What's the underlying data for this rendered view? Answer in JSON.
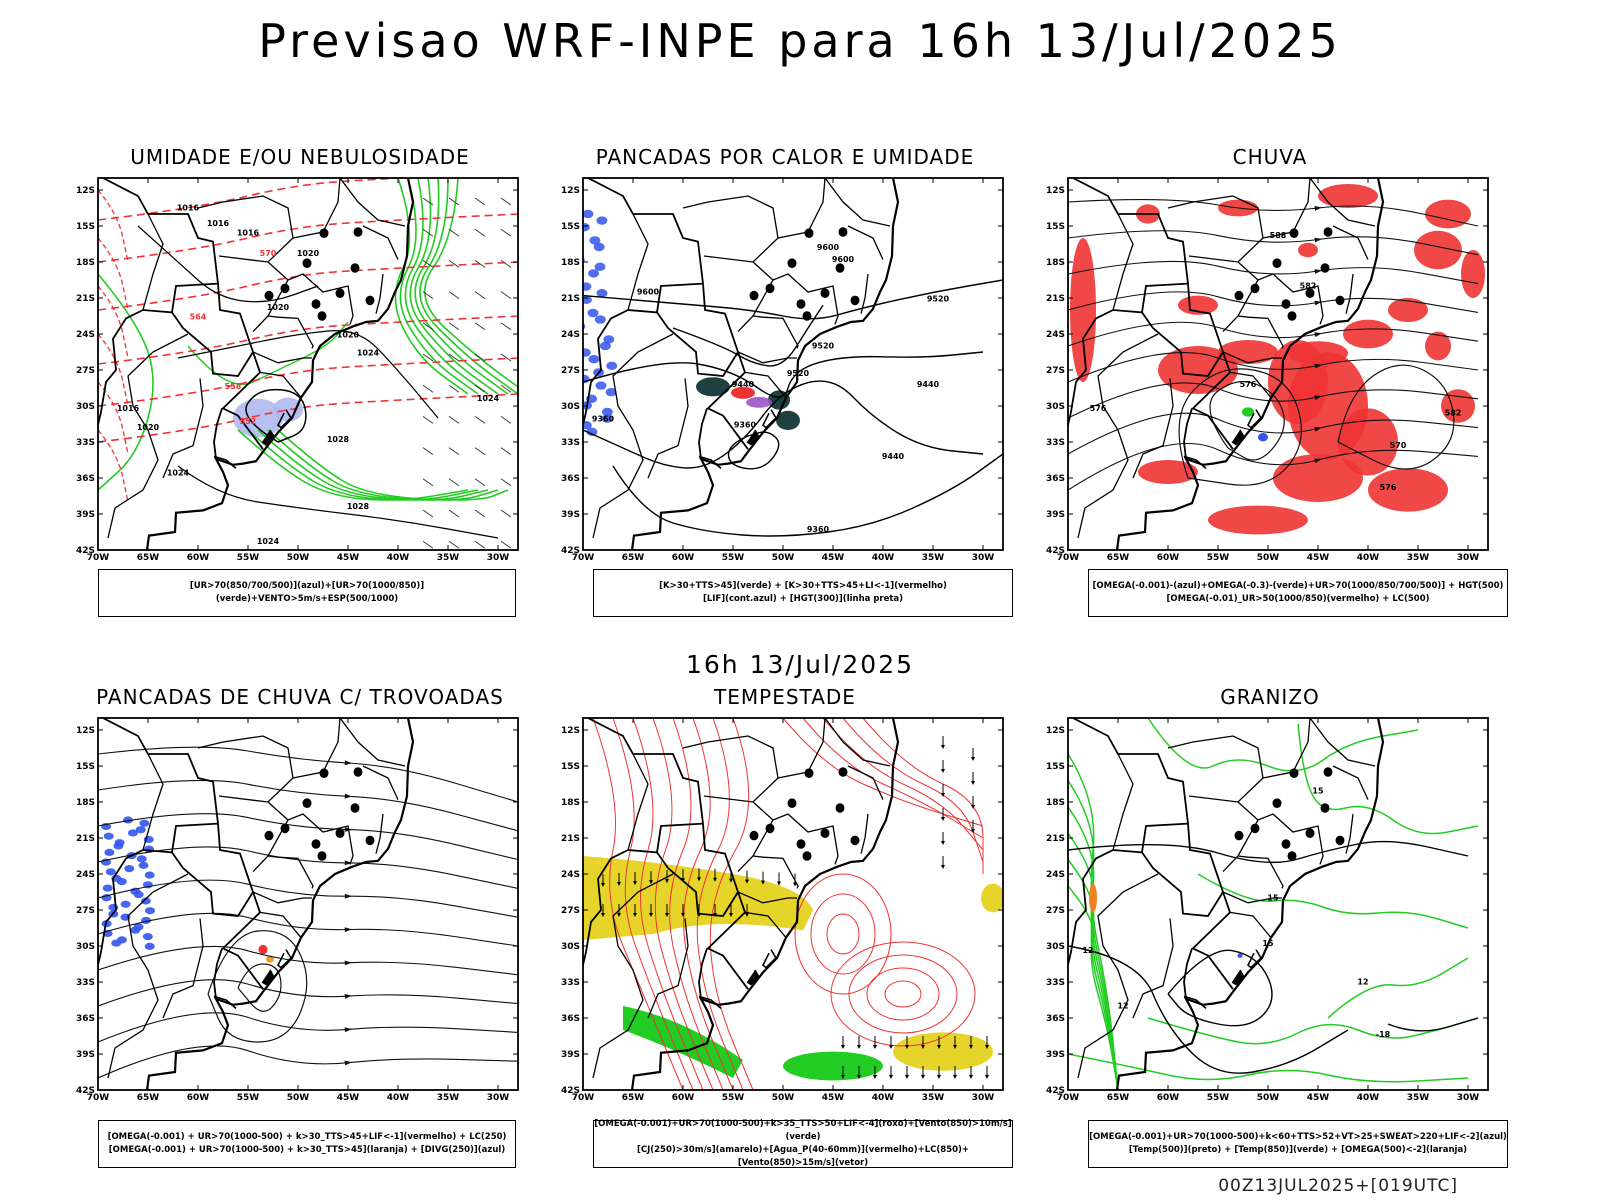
{
  "header": {
    "title": "Previsao WRF-INPE  para 16h 13/Jul/2025"
  },
  "mid_title": "16h 13/Jul/2025",
  "footer": "00Z13JUL2025+[019UTC]",
  "axes": {
    "lat_labels": [
      "12S",
      "15S",
      "18S",
      "21S",
      "24S",
      "27S",
      "30S",
      "33S",
      "36S",
      "39S",
      "42S"
    ],
    "lon_labels": [
      "70W",
      "65W",
      "60W",
      "55W",
      "50W",
      "45W",
      "40W",
      "35W",
      "30W"
    ]
  },
  "panels": [
    {
      "title": "UMIDADE E/OU NEBULOSIDADE",
      "legend": [
        "[UR>70(850/700/500)](azul)+[UR>70(1000/850)](verde)+VENTO>5m/s+ESP(500/1000)"
      ],
      "contour_labels": [
        "1016",
        "1016",
        "1016",
        "1020",
        "1020",
        "1020",
        "1024",
        "1024",
        "1028",
        "1028",
        "1024",
        "1024",
        "1016",
        "1020",
        "570",
        "564",
        "558",
        "552"
      ]
    },
    {
      "title": "PANCADAS POR CALOR E UMIDADE",
      "legend": [
        "[K>30+TTS>45](verde) + [K>30+TTS>45+LI<-1](vermelho)",
        "[LIF](cont.azul) + [HGT(300)](linha preta)"
      ],
      "contour_labels": [
        "9600",
        "9600",
        "9600",
        "9520",
        "9520",
        "9520",
        "9440",
        "9440",
        "9440",
        "9360",
        "9360",
        "9360"
      ]
    },
    {
      "title": "CHUVA",
      "legend": [
        "[OMEGA(-0.001)-(azul)+OMEGA(-0.3)-(verde)+UR>70(1000/850/700/500)] + HGT(500)",
        "[OMEGA(-0.01)_UR>50(1000/850)(vermelho) + LC(500)"
      ],
      "contour_labels": [
        "588",
        "582",
        "576",
        "576",
        "570",
        "582",
        "576"
      ]
    },
    {
      "title": "PANCADAS DE CHUVA C/ TROVOADAS",
      "legend": [
        "[OMEGA(-0.001) + UR>70(1000-500) + k>30_TTS>45+LIF<-1](vermelho) + LC(250)",
        "[OMEGA(-0.001) + UR>70(1000-500) + k>30_TTS>45](laranja) + [DIVG(250)](azul)"
      ],
      "contour_labels": []
    },
    {
      "title": "TEMPESTADE",
      "legend": [
        "[OMEGA(-0.001)+UR>70(1000-500)+k>35_TTS>50+LIF<-4](roxo)+[Vento(850)>10m/s](verde)",
        "[CJ(250)>30m/s](amarelo)+[Agua_P(40-60mm)](vermelho)+LC(850)+[Vento(850)>15m/s](vetor)"
      ],
      "contour_labels": []
    },
    {
      "title": "GRANIZO",
      "legend": [
        "[OMEGA(-0.001)+UR>70(1000-500)+k<60+TTS>52+VT>25+SWEAT>220+LIF<-2](azul)",
        "[Temp(500)](preto) + [Temp(850)](verde) + [OMEGA(500)<-2](laranja)"
      ],
      "contour_labels": [
        "15",
        "15",
        "12",
        "12",
        "12",
        "-18",
        "15"
      ]
    }
  ],
  "colors": {
    "red": "#ee3333",
    "green": "#22cc22",
    "blue": "#3355ee",
    "yellow": "#e6d42a",
    "lavender": "#b0b8f0",
    "darkteal": "#1e4040"
  }
}
